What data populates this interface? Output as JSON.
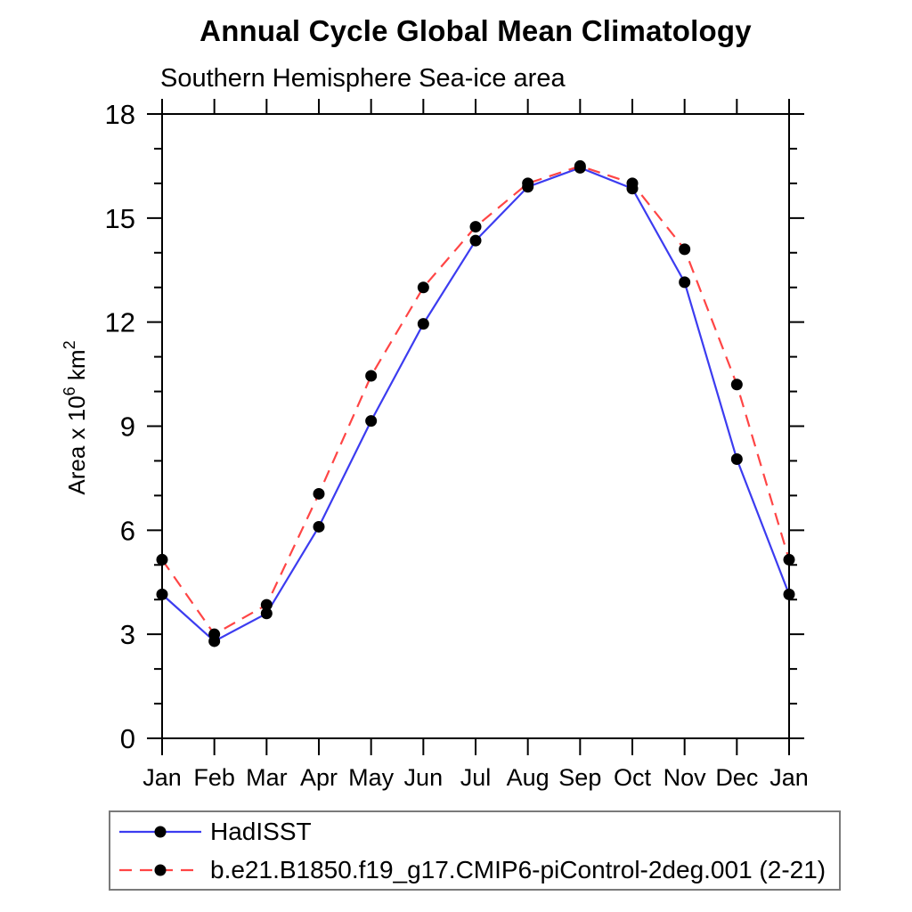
{
  "header": {
    "title": "Annual Cycle Global Mean Climatology",
    "subtitle": "Southern Hemisphere Sea-ice area"
  },
  "chart_data": {
    "type": "line",
    "categories": [
      "Jan",
      "Feb",
      "Mar",
      "Apr",
      "May",
      "Jun",
      "Jul",
      "Aug",
      "Sep",
      "Oct",
      "Nov",
      "Dec",
      "Jan"
    ],
    "series": [
      {
        "name": "HadISST",
        "color": "#3c3cf0",
        "style": "solid",
        "marker": "filled-circle",
        "marker_color": "#000000",
        "values": [
          4.15,
          2.8,
          3.6,
          6.1,
          9.15,
          11.95,
          14.35,
          15.9,
          16.45,
          15.85,
          13.15,
          8.05,
          4.15
        ]
      },
      {
        "name": "b.e21.B1850.f19_g17.CMIP6-piControl-2deg.001 (2-21)",
        "color": "#ff4545",
        "style": "dashed",
        "marker": "filled-circle",
        "marker_color": "#000000",
        "values": [
          5.15,
          3.0,
          3.85,
          7.05,
          10.45,
          13.0,
          14.75,
          16.0,
          16.5,
          16.0,
          14.1,
          10.2,
          5.15
        ]
      }
    ],
    "xlabel": "",
    "ylabel": "Area x 10^6 km^2",
    "ylabel_parts": {
      "prefix": "Area x 10",
      "sup1": "6",
      "mid": " km",
      "sup2": "2"
    },
    "ylim": [
      0,
      18
    ],
    "yticks_major": [
      0,
      3,
      6,
      9,
      12,
      15,
      18
    ],
    "ytick_minor_step": 1,
    "grid": false,
    "frame_color": "#000000",
    "legend_position": "bottom-box"
  }
}
